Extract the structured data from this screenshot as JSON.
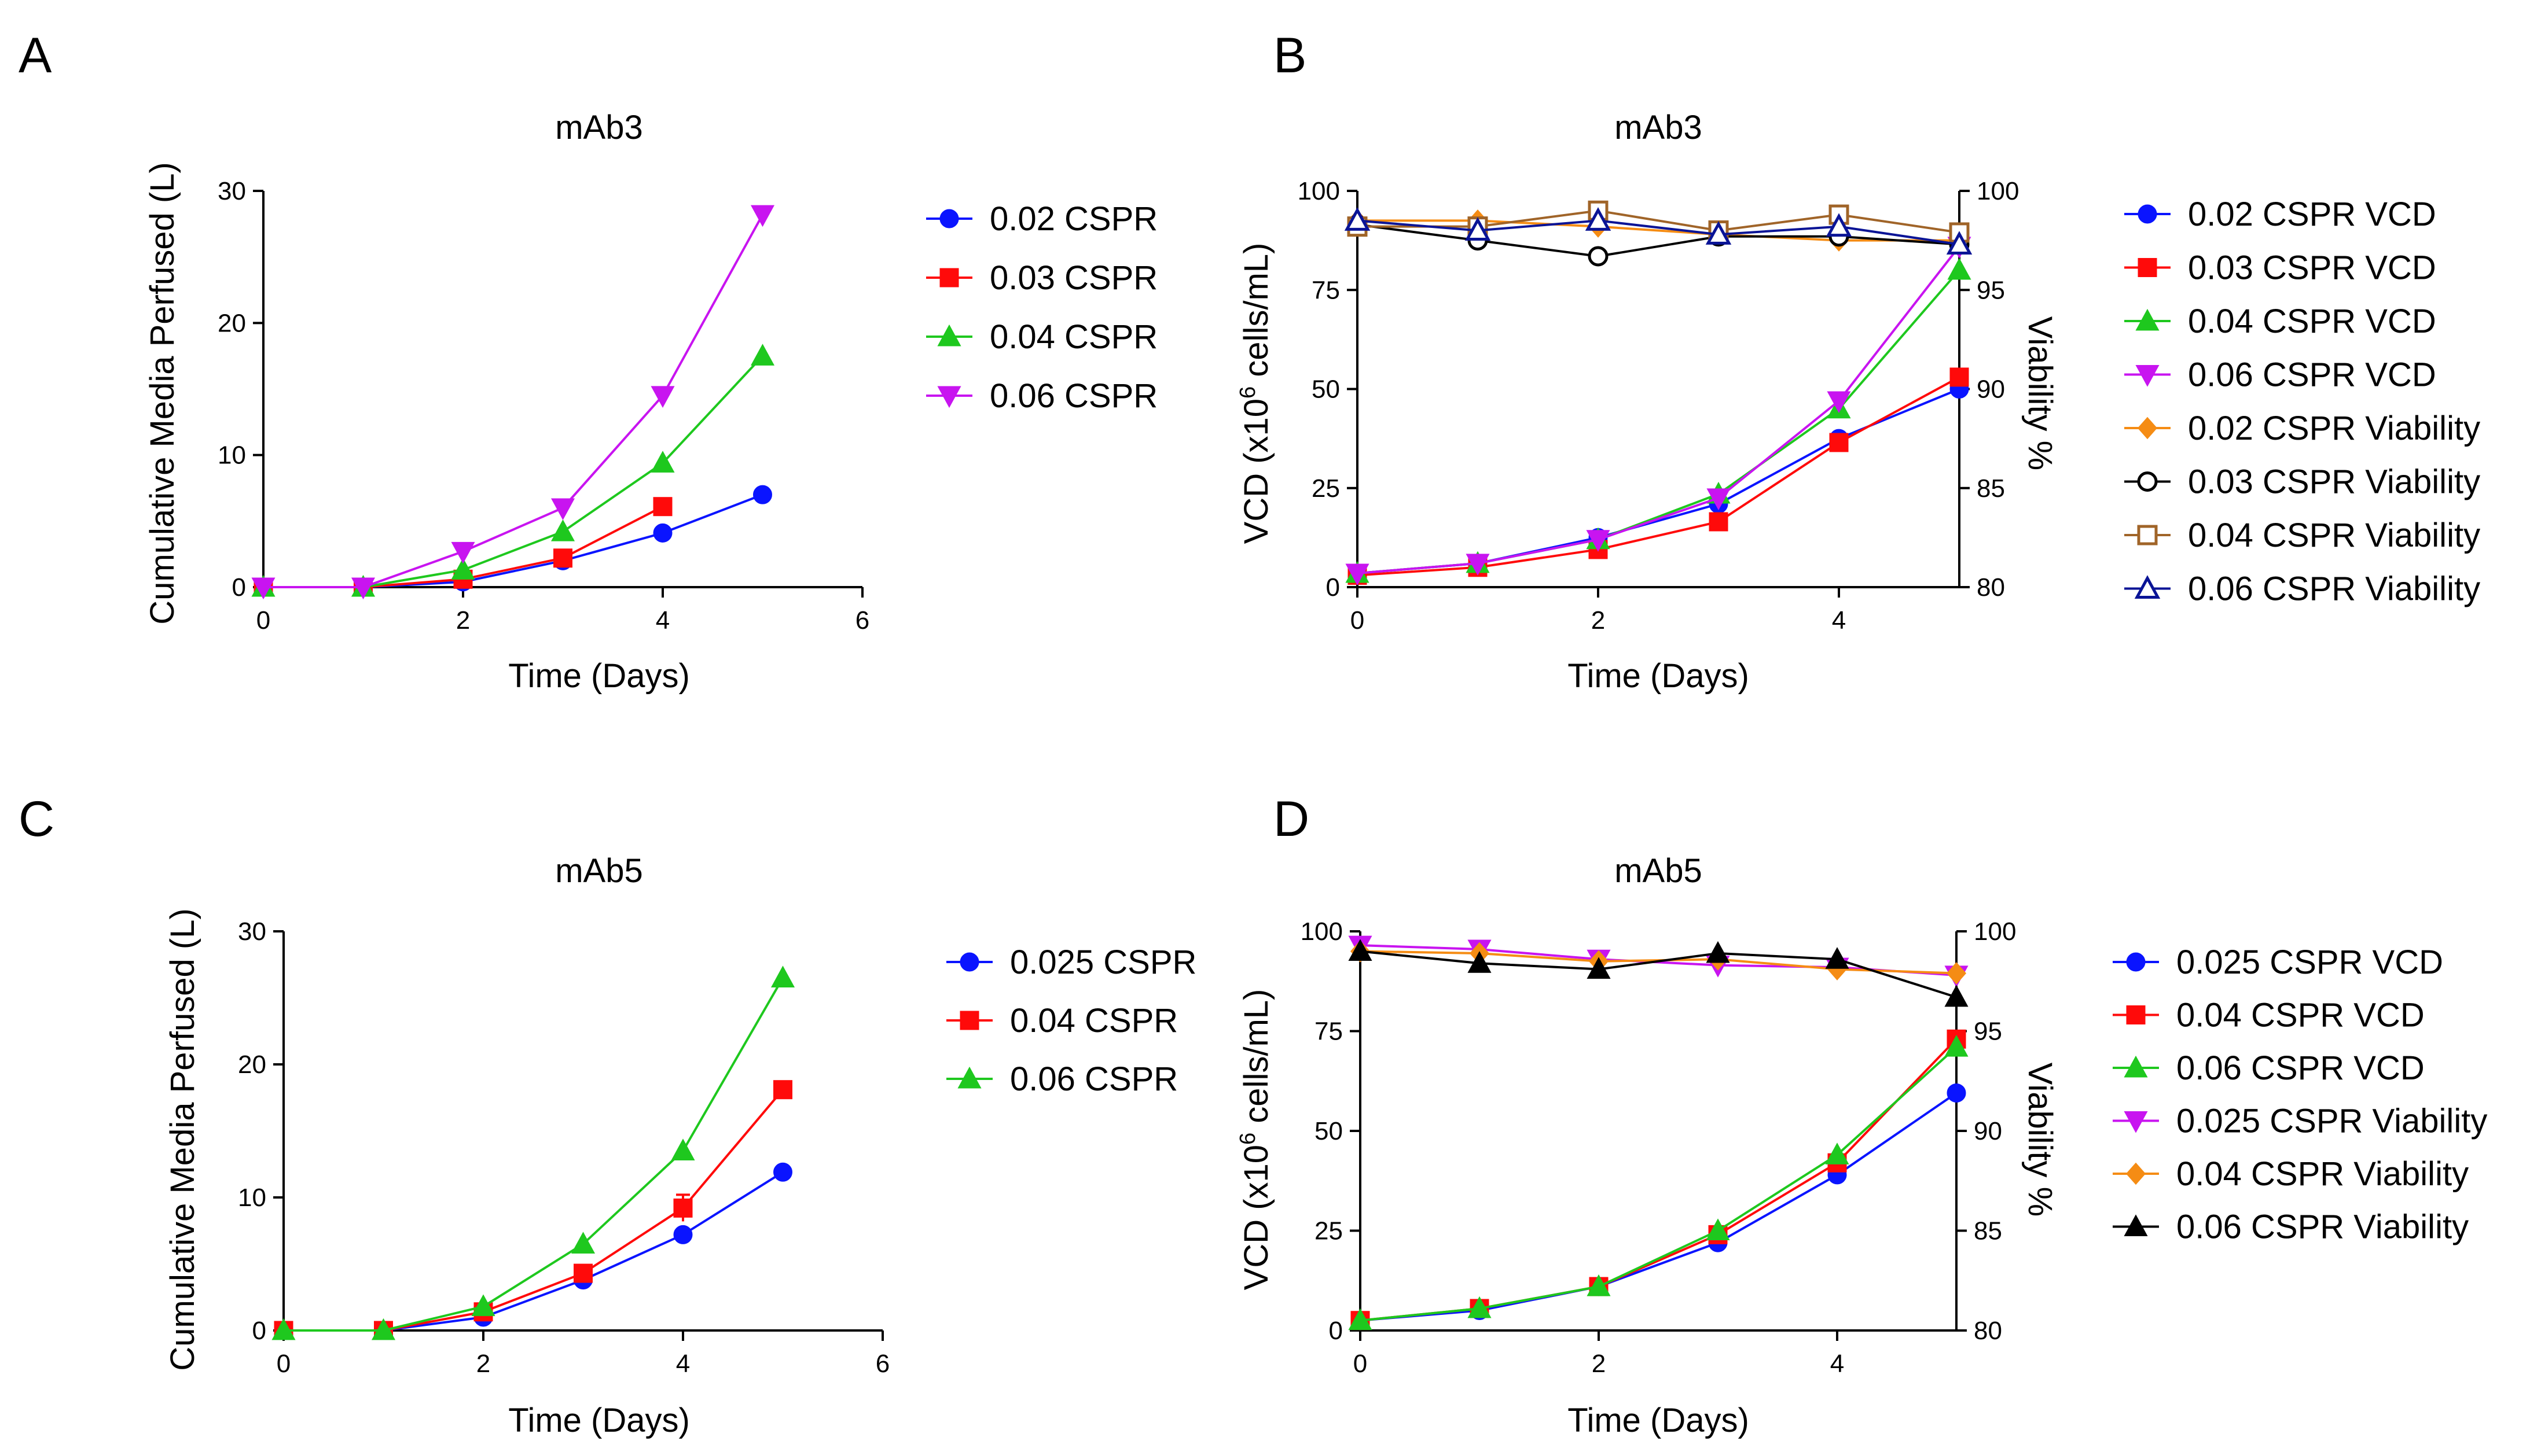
{
  "colors": {
    "blue": "#0a14ff",
    "red": "#ff0a0a",
    "green": "#1ec81e",
    "magenta": "#c814f0",
    "orange": "#f58c14",
    "black": "#000000",
    "brown": "#a06428",
    "navy": "#0a1496"
  },
  "chart_data": [
    {
      "panel": "A",
      "type": "line",
      "title": "mAb3",
      "xlabel": "Time (Days)",
      "ylabel": "Cumulative Media Perfused (L)",
      "xlim": [
        0,
        6
      ],
      "ylim": [
        0,
        30
      ],
      "xticks": [
        "0",
        "2",
        "4",
        "6"
      ],
      "yticks": [
        "0",
        "10",
        "20",
        "30"
      ],
      "legend_position": "right",
      "series": [
        {
          "name": "0.02 CSPR",
          "axis": "left",
          "marker": "circle",
          "color": "blue",
          "x": [
            0,
            1,
            2,
            3,
            4,
            5
          ],
          "values": [
            0,
            0,
            0.4,
            2.0,
            4.1,
            7.0
          ]
        },
        {
          "name": "0.03 CSPR",
          "axis": "left",
          "marker": "square",
          "color": "red",
          "x": [
            0,
            1,
            2,
            3,
            4
          ],
          "values": [
            0,
            0,
            0.6,
            2.2,
            6.1
          ]
        },
        {
          "name": "0.04 CSPR",
          "axis": "left",
          "marker": "triangle-up",
          "color": "green",
          "x": [
            0,
            1,
            2,
            3,
            4,
            5
          ],
          "values": [
            0,
            0,
            1.3,
            4.2,
            9.4,
            17.5
          ]
        },
        {
          "name": "0.06 CSPR",
          "axis": "left",
          "marker": "triangle-down",
          "color": "magenta",
          "x": [
            0,
            1,
            2,
            3,
            4,
            5
          ],
          "values": [
            0,
            0,
            2.7,
            6.0,
            14.5,
            28.2
          ]
        }
      ]
    },
    {
      "panel": "B",
      "type": "line",
      "title": "mAb3",
      "xlabel": "Time (Days)",
      "ylabel": "VCD (x10^6 cells/mL)",
      "ylabel_parts": [
        "VCD (x10",
        "6",
        " cells/mL)"
      ],
      "ylabel2": "Viability %",
      "xlim": [
        0,
        5
      ],
      "ylim": [
        0,
        100
      ],
      "y2lim": [
        80,
        100
      ],
      "xticks": [
        "0",
        "2",
        "4"
      ],
      "yticks": [
        "0",
        "25",
        "50",
        "75",
        "100"
      ],
      "y2ticks": [
        "80",
        "85",
        "90",
        "95",
        "100"
      ],
      "legend_position": "right",
      "series": [
        {
          "name": "0.02 CSPR VCD",
          "axis": "left",
          "marker": "circle",
          "color": "blue",
          "x": [
            0,
            1,
            2,
            3,
            4,
            5
          ],
          "values": [
            3.5,
            6,
            12.5,
            21,
            37.5,
            50
          ]
        },
        {
          "name": "0.03 CSPR VCD",
          "axis": "left",
          "marker": "square",
          "color": "red",
          "x": [
            0,
            1,
            2,
            3,
            4,
            5
          ],
          "values": [
            3,
            5,
            9.5,
            16.5,
            36.5,
            53
          ]
        },
        {
          "name": "0.04 CSPR VCD",
          "axis": "left",
          "marker": "triangle-up",
          "color": "green",
          "x": [
            0,
            1,
            2,
            3,
            4,
            5
          ],
          "values": [
            3.5,
            6,
            12,
            23.5,
            45,
            80
          ]
        },
        {
          "name": "0.06 CSPR VCD",
          "axis": "left",
          "marker": "triangle-down",
          "color": "magenta",
          "x": [
            0,
            1,
            2,
            3,
            4,
            5
          ],
          "values": [
            3.5,
            6,
            12,
            22.5,
            47,
            86
          ]
        },
        {
          "name": "0.02 CSPR Viability",
          "axis": "right",
          "marker": "diamond",
          "color": "orange",
          "x": [
            0,
            1,
            2,
            3,
            4,
            5
          ],
          "values": [
            98.5,
            98.5,
            98.2,
            97.8,
            97.5,
            97.5
          ]
        },
        {
          "name": "0.03 CSPR Viability",
          "axis": "right",
          "marker": "circle-open",
          "color": "black",
          "x": [
            0,
            1,
            2,
            3,
            4,
            5
          ],
          "values": [
            98.3,
            97.5,
            96.7,
            97.7,
            97.7,
            97.3
          ]
        },
        {
          "name": "0.04 CSPR Viability",
          "axis": "right",
          "marker": "square-open",
          "color": "brown",
          "x": [
            0,
            1,
            2,
            3,
            4,
            5
          ],
          "values": [
            98.2,
            98.2,
            99.0,
            98.0,
            98.8,
            97.9
          ]
        },
        {
          "name": "0.06 CSPR Viability",
          "axis": "right",
          "marker": "triangle-open",
          "color": "navy",
          "x": [
            0,
            1,
            2,
            3,
            4,
            5
          ],
          "values": [
            98.5,
            98.0,
            98.5,
            97.8,
            98.2,
            97.3
          ]
        }
      ]
    },
    {
      "panel": "C",
      "type": "line",
      "title": "mAb5",
      "xlabel": "Time (Days)",
      "ylabel": "Cumulative Media Perfused (L)",
      "xlim": [
        0,
        6
      ],
      "ylim": [
        0,
        30
      ],
      "xticks": [
        "0",
        "2",
        "4",
        "6"
      ],
      "yticks": [
        "0",
        "10",
        "20",
        "30"
      ],
      "legend_position": "right",
      "series": [
        {
          "name": "0.025 CSPR",
          "axis": "left",
          "marker": "circle",
          "color": "blue",
          "x": [
            0,
            1,
            2,
            3,
            4,
            5
          ],
          "values": [
            0,
            0,
            1.0,
            3.8,
            7.2,
            11.9
          ]
        },
        {
          "name": "0.04 CSPR",
          "axis": "left",
          "marker": "square",
          "color": "red",
          "x": [
            0,
            1,
            2,
            3,
            4,
            5
          ],
          "values": [
            0,
            0,
            1.4,
            4.3,
            9.2,
            18.1
          ],
          "error": [
            0,
            0,
            0.2,
            0.3,
            1.0,
            0.3
          ]
        },
        {
          "name": "0.06 CSPR",
          "axis": "left",
          "marker": "triangle-up",
          "color": "green",
          "x": [
            0,
            1,
            2,
            3,
            4,
            5
          ],
          "values": [
            0,
            0,
            1.8,
            6.5,
            13.5,
            26.5
          ]
        }
      ]
    },
    {
      "panel": "D",
      "type": "line",
      "title": "mAb5",
      "xlabel": "Time (Days)",
      "ylabel": "VCD (x10^6 cells/mL)",
      "ylabel_parts": [
        "VCD (x10",
        "6",
        " cells/mL)"
      ],
      "ylabel2": "Viability %",
      "xlim": [
        0,
        5
      ],
      "ylim": [
        0,
        100
      ],
      "y2lim": [
        80,
        100
      ],
      "xticks": [
        "0",
        "2",
        "4"
      ],
      "yticks": [
        "0",
        "25",
        "50",
        "75",
        "100"
      ],
      "y2ticks": [
        "80",
        "85",
        "90",
        "95",
        "100"
      ],
      "legend_position": "right",
      "series": [
        {
          "name": "0.025 CSPR VCD",
          "axis": "left",
          "marker": "circle",
          "color": "blue",
          "x": [
            0,
            1,
            2,
            3,
            4,
            5
          ],
          "values": [
            2.5,
            5,
            11,
            22,
            39,
            59.5
          ]
        },
        {
          "name": "0.04 CSPR VCD",
          "axis": "left",
          "marker": "square",
          "color": "red",
          "x": [
            0,
            1,
            2,
            3,
            4,
            5
          ],
          "values": [
            2.5,
            5.5,
            11,
            24,
            42,
            73
          ]
        },
        {
          "name": "0.06 CSPR VCD",
          "axis": "left",
          "marker": "triangle-up",
          "color": "green",
          "x": [
            0,
            1,
            2,
            3,
            4,
            5
          ],
          "values": [
            2.5,
            5.5,
            11,
            25,
            44,
            71
          ]
        },
        {
          "name": "0.025 CSPR Viability",
          "axis": "right",
          "marker": "triangle-down",
          "color": "magenta",
          "x": [
            0,
            1,
            2,
            3,
            4,
            5
          ],
          "values": [
            99.3,
            99.1,
            98.6,
            98.3,
            98.2,
            97.8
          ]
        },
        {
          "name": "0.04 CSPR Viability",
          "axis": "right",
          "marker": "diamond",
          "color": "orange",
          "x": [
            0,
            1,
            2,
            3,
            4,
            5
          ],
          "values": [
            99.0,
            98.9,
            98.5,
            98.6,
            98.1,
            97.9
          ]
        },
        {
          "name": "0.06 CSPR Viability",
          "axis": "right",
          "marker": "triangle-up",
          "color": "black",
          "x": [
            0,
            1,
            2,
            3,
            4,
            5
          ],
          "values": [
            99.0,
            98.4,
            98.1,
            98.9,
            98.6,
            96.7
          ]
        }
      ]
    }
  ]
}
